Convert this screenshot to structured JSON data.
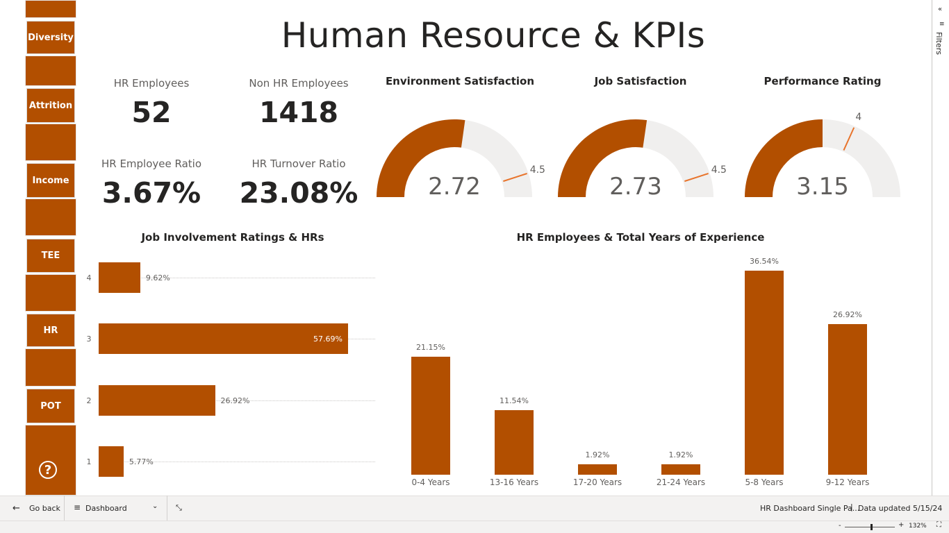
{
  "title": "Human Resource & KPIs",
  "nav": {
    "buttons": [
      "Diversity",
      "Attrition",
      "Income",
      "TEE",
      "HR",
      "POT"
    ],
    "help_icon": "question-icon"
  },
  "kpis": [
    {
      "label": "HR Employees",
      "value": "52"
    },
    {
      "label": "Non HR Employees",
      "value": "1418"
    },
    {
      "label": "HR Employee Ratio",
      "value": "3.67%"
    },
    {
      "label": "HR Turnover Ratio",
      "value": "23.08%"
    }
  ],
  "gauges": [
    {
      "title": "Environment Satisfaction",
      "value": "2.72",
      "target": "4.5",
      "min": 0,
      "max": 5,
      "value_num": 2.72,
      "target_num": 4.5
    },
    {
      "title": "Job Satisfaction",
      "value": "2.73",
      "target": "4.5",
      "min": 0,
      "max": 5,
      "value_num": 2.73,
      "target_num": 4.5
    },
    {
      "title": "Performance Rating",
      "value": "3.15",
      "target": "4",
      "min": 0,
      "max": 6.3,
      "value_num": 3.15,
      "target_num": 4
    }
  ],
  "colors": {
    "accent": "#b24f00",
    "gauge_track": "#f0efee",
    "target_line": "#e8742c"
  },
  "chart_data": [
    {
      "type": "bar",
      "orientation": "horizontal",
      "title": "Job Involvement Ratings & HRs",
      "categories": [
        "4",
        "3",
        "2",
        "1"
      ],
      "values": [
        9.62,
        57.69,
        26.92,
        5.77
      ],
      "value_labels": [
        "9.62%",
        "57.69%",
        "26.92%",
        "5.77%"
      ]
    },
    {
      "type": "bar",
      "title": "HR Employees & Total Years of Experience",
      "categories": [
        "0-4 Years",
        "13-16 Years",
        "17-20 Years",
        "21-24 Years",
        "5-8 Years",
        "9-12 Years"
      ],
      "values": [
        21.15,
        11.54,
        1.92,
        1.92,
        36.54,
        26.92
      ],
      "value_labels": [
        "21.15%",
        "11.54%",
        "1.92%",
        "1.92%",
        "36.54%",
        "26.92%"
      ]
    }
  ],
  "filters": {
    "label": "Filters"
  },
  "bottom": {
    "go_back": "Go back",
    "page_selector": "Dashboard",
    "report_name": "HR Dashboard Single Pa...",
    "data_updated": "Data updated 5/15/24",
    "zoom": "132%",
    "zoom_minus": "-",
    "zoom_plus": "+"
  }
}
